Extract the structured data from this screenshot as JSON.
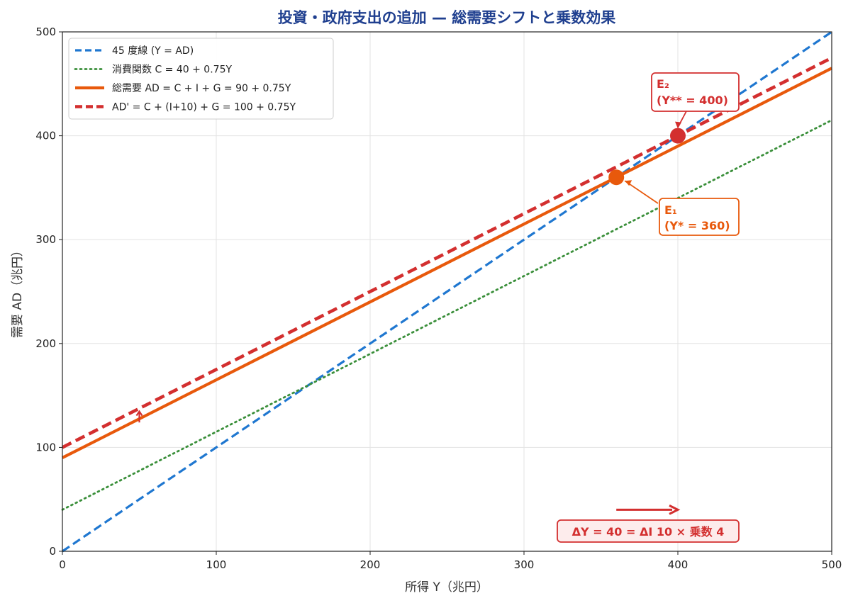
{
  "chart_data": {
    "type": "line",
    "title": "投資・政府支出の追加 — 総需要シフトと乗数効果",
    "xlabel": "所得 Y（兆円）",
    "ylabel": "需要 AD（兆円）",
    "xlim": [
      0,
      500
    ],
    "ylim": [
      0,
      500
    ],
    "xticks": [
      0,
      100,
      200,
      300,
      400,
      500
    ],
    "yticks": [
      0,
      100,
      200,
      300,
      400,
      500
    ],
    "grid": true,
    "legend_position": "top-left",
    "series": [
      {
        "name": "45 度線 (Y = AD)",
        "intercept": 0,
        "slope": 1,
        "color": "#1f77d0",
        "style": "dashed",
        "x": [
          0,
          500
        ],
        "y": [
          0,
          500
        ]
      },
      {
        "name": "消費関数 C = 40 + 0.75Y",
        "intercept": 40,
        "slope": 0.75,
        "color": "#3a8f3a",
        "style": "dotted",
        "x": [
          0,
          500
        ],
        "y": [
          40,
          415
        ]
      },
      {
        "name": "総需要 AD = C + I + G = 90 + 0.75Y",
        "intercept": 90,
        "slope": 0.75,
        "color": "#e8590c",
        "style": "solid",
        "x": [
          0,
          500
        ],
        "y": [
          90,
          465
        ]
      },
      {
        "name": "AD' = C + (I+10) + G = 100 + 0.75Y",
        "intercept": 100,
        "slope": 0.75,
        "color": "#d32f2f",
        "style": "dashed",
        "x": [
          0,
          500
        ],
        "y": [
          100,
          475
        ]
      }
    ],
    "points": [
      {
        "id": "E1",
        "x": 360,
        "y": 360,
        "color": "#e8590c",
        "label_line1": "E₁",
        "label_line2": "(Y* = 360)"
      },
      {
        "id": "E2",
        "x": 400,
        "y": 400,
        "color": "#d32f2f",
        "label_line1": "E₂",
        "label_line2": "(Y** = 400)"
      }
    ],
    "annotations": {
      "shift_arrow": {
        "x": 50,
        "y_from": 124,
        "y_to": 134,
        "color": "#d32f2f"
      },
      "delta_arrow": {
        "x_from": 360,
        "x_to": 400,
        "y": 40,
        "color": "#d32f2f"
      },
      "multiplier_text": "ΔY = 40 = ΔI 10 × 乗数 4"
    }
  }
}
